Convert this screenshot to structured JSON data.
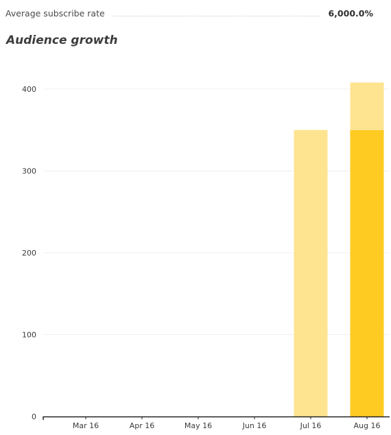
{
  "stats": {
    "subscribe_rate_label": "Average subscribe rate",
    "subscribe_rate_value": "6,000.0%"
  },
  "section_title": "Audience growth",
  "colors": {
    "light_bar": "#fee491",
    "dark_bar": "#fecb22",
    "gridline": "#f0f0f0",
    "axis": "#222222"
  },
  "chart_data": {
    "type": "bar",
    "stacked": true,
    "title": "",
    "xlabel": "",
    "ylabel": "",
    "categories": [
      "Mar 16",
      "Apr 16",
      "May 16",
      "Jun 16",
      "Jul 16",
      "Aug 16"
    ],
    "series": [
      {
        "color": "#fecb22",
        "values": [
          0,
          0,
          0,
          0,
          0,
          350
        ]
      },
      {
        "color": "#fee491",
        "values": [
          0,
          0,
          0,
          0,
          350,
          58
        ]
      }
    ],
    "ylim": [
      0,
      420
    ],
    "yticks": [
      0,
      100,
      200,
      300,
      400
    ],
    "grid": true
  }
}
